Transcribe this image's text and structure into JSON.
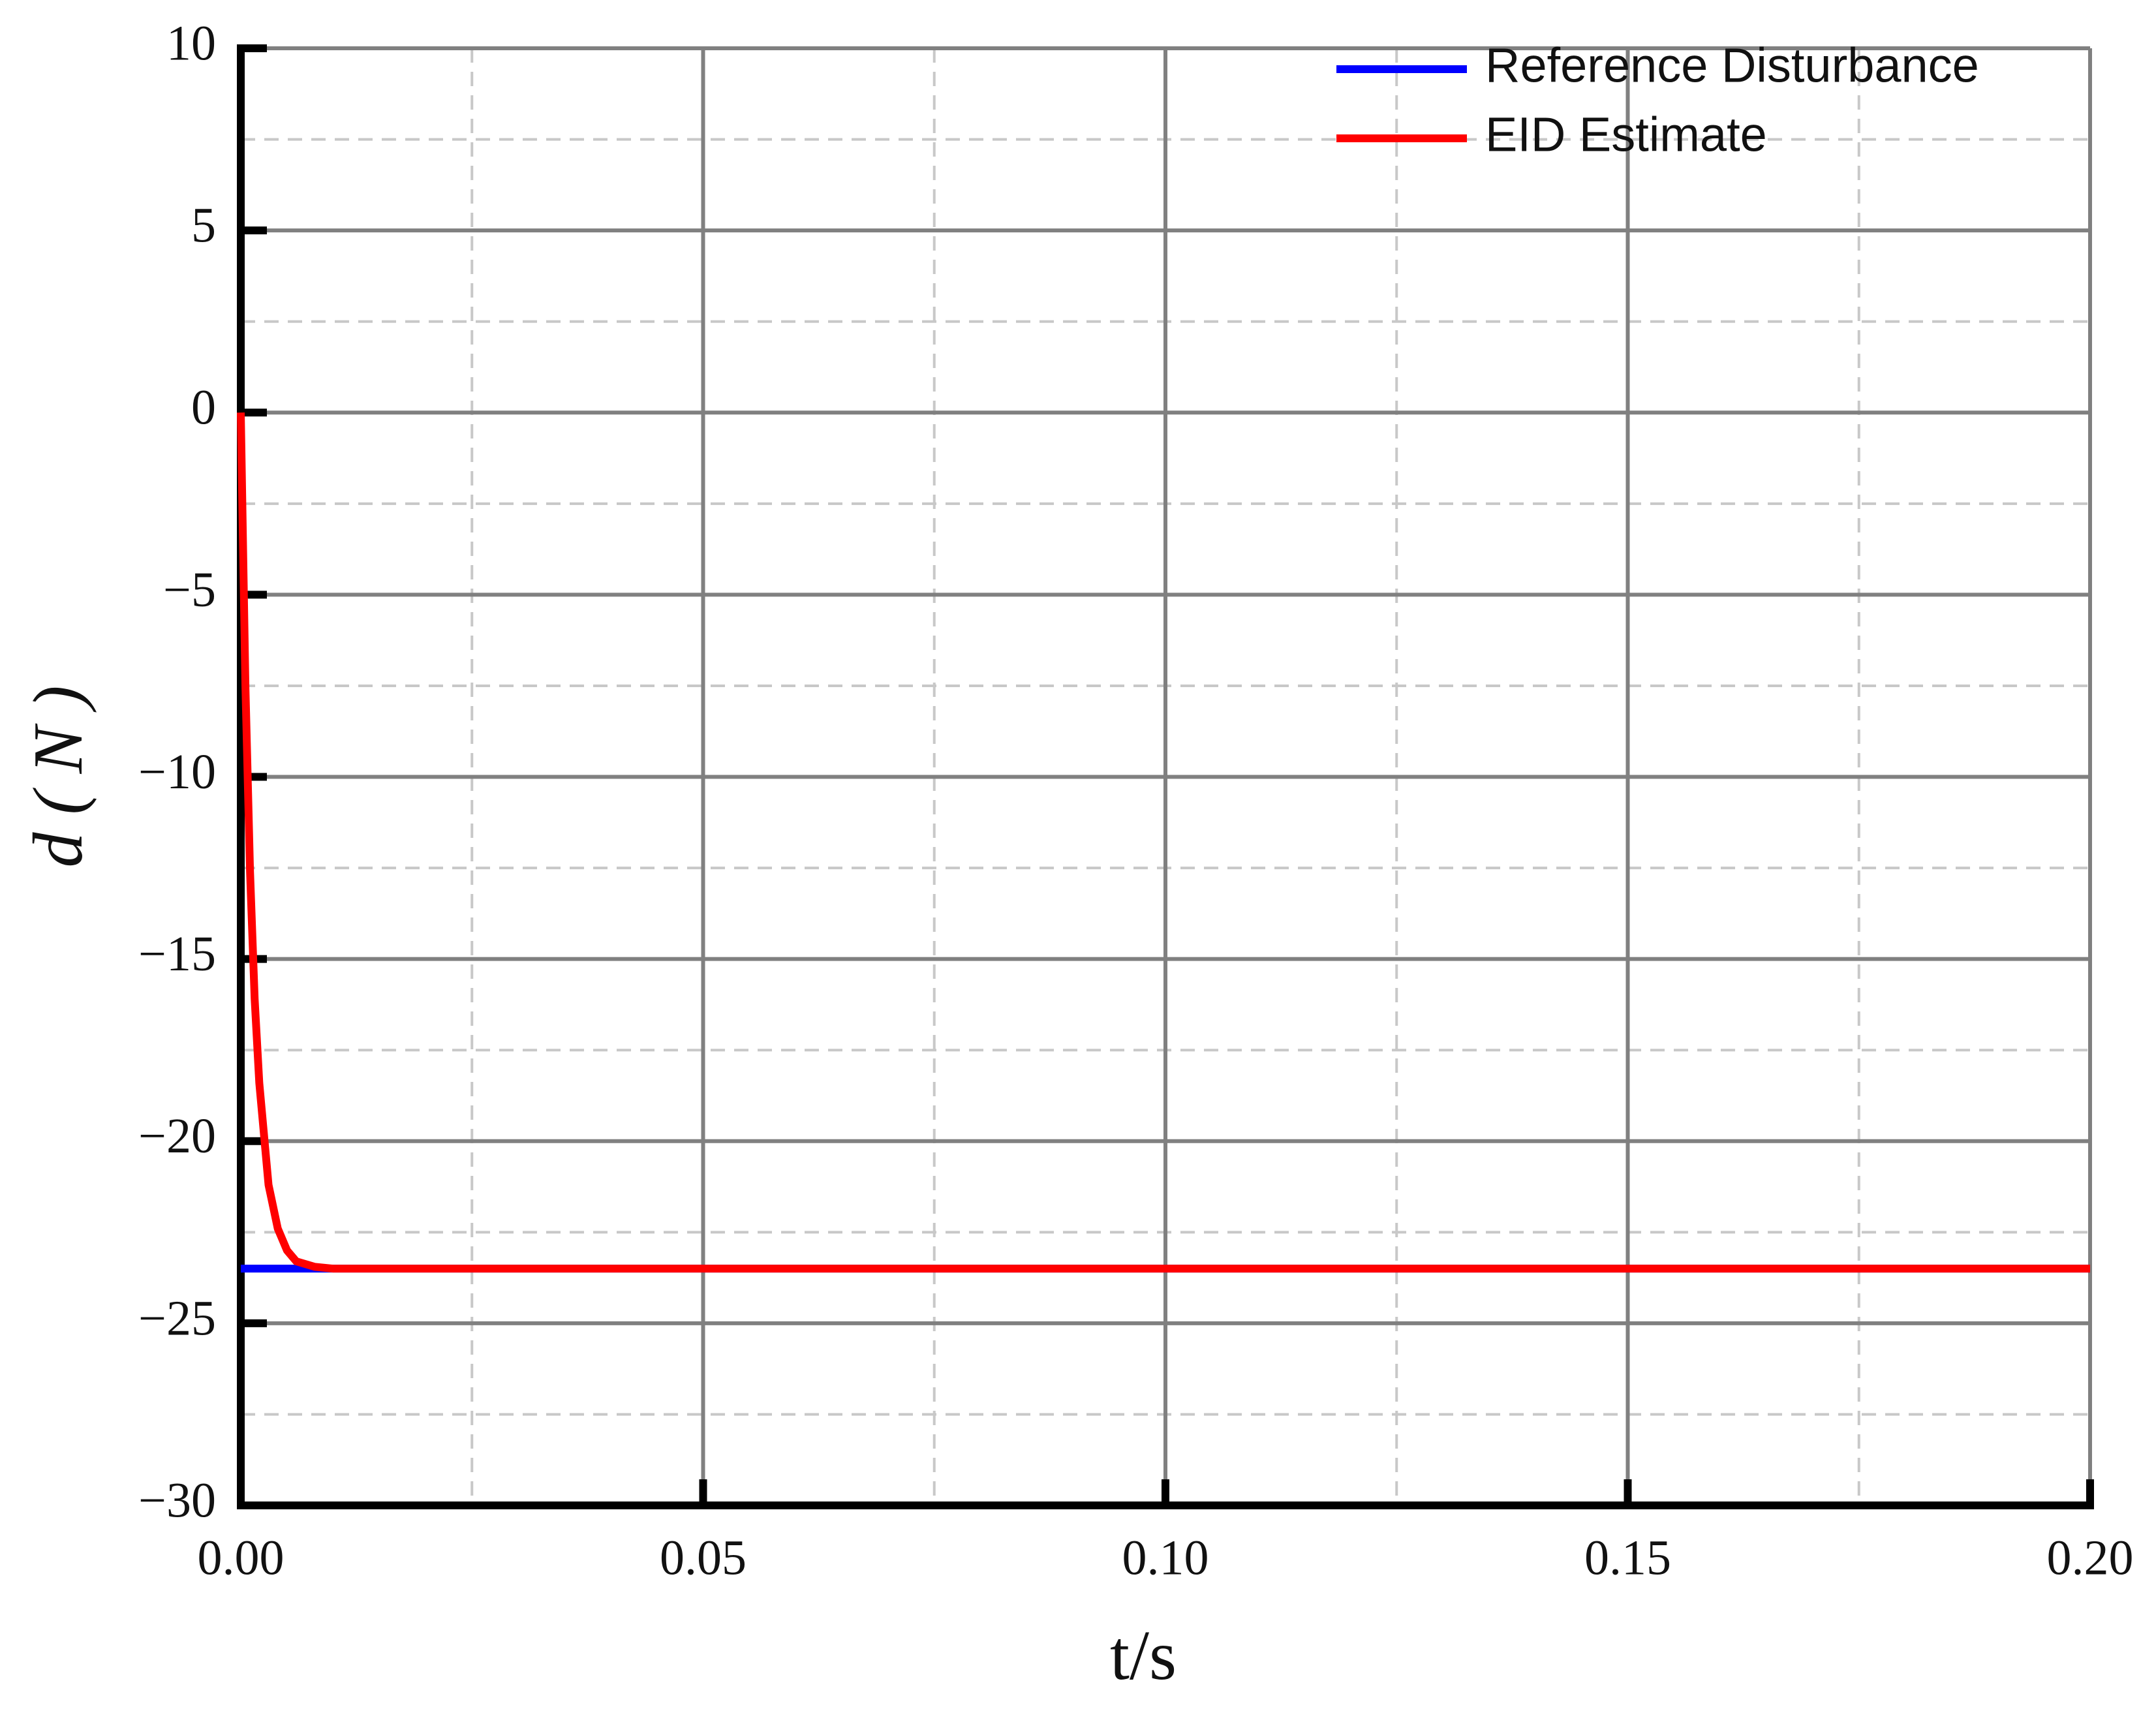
{
  "chart_data": {
    "type": "line",
    "x_label": "t/s",
    "y_label": "d ( N )",
    "x": [
      0,
      0.0005,
      0.001,
      0.0015,
      0.002,
      0.003,
      0.004,
      0.005,
      0.006,
      0.008,
      0.01,
      0.05,
      0.1,
      0.15,
      0.2
    ],
    "series": [
      {
        "name": "Reference Disturbance",
        "color": "#0000ff",
        "values": [
          -23.5,
          -23.5,
          -23.5,
          -23.5,
          -23.5,
          -23.5,
          -23.5,
          -23.5,
          -23.5,
          -23.5,
          -23.5,
          -23.5,
          -23.5,
          -23.5,
          -23.5
        ]
      },
      {
        "name": "EID Estimate",
        "color": "#ff0000",
        "values": [
          0,
          -7.5,
          -12.6,
          -16.1,
          -18.4,
          -21.2,
          -22.4,
          -23.0,
          -23.3,
          -23.45,
          -23.5,
          -23.5,
          -23.5,
          -23.5,
          -23.5
        ]
      }
    ],
    "xlim": [
      0,
      0.2
    ],
    "xticks": [
      {
        "value": 0,
        "label": "0.00"
      },
      {
        "value": 0.05,
        "label": "0.05"
      },
      {
        "value": 0.1,
        "label": "0.10"
      },
      {
        "value": 0.15,
        "label": "0.15"
      },
      {
        "value": 0.2,
        "label": "0.20"
      }
    ],
    "ylim": [
      -30,
      10
    ],
    "yticks": [
      {
        "value": -30,
        "label": "−30"
      },
      {
        "value": -25,
        "label": "−25"
      },
      {
        "value": -20,
        "label": "−20"
      },
      {
        "value": -15,
        "label": "−15"
      },
      {
        "value": -10,
        "label": "−10"
      },
      {
        "value": -5,
        "label": "−5"
      },
      0,
      5,
      10
    ],
    "grid": true,
    "minor_grid": true,
    "legend_position": "upper right"
  }
}
